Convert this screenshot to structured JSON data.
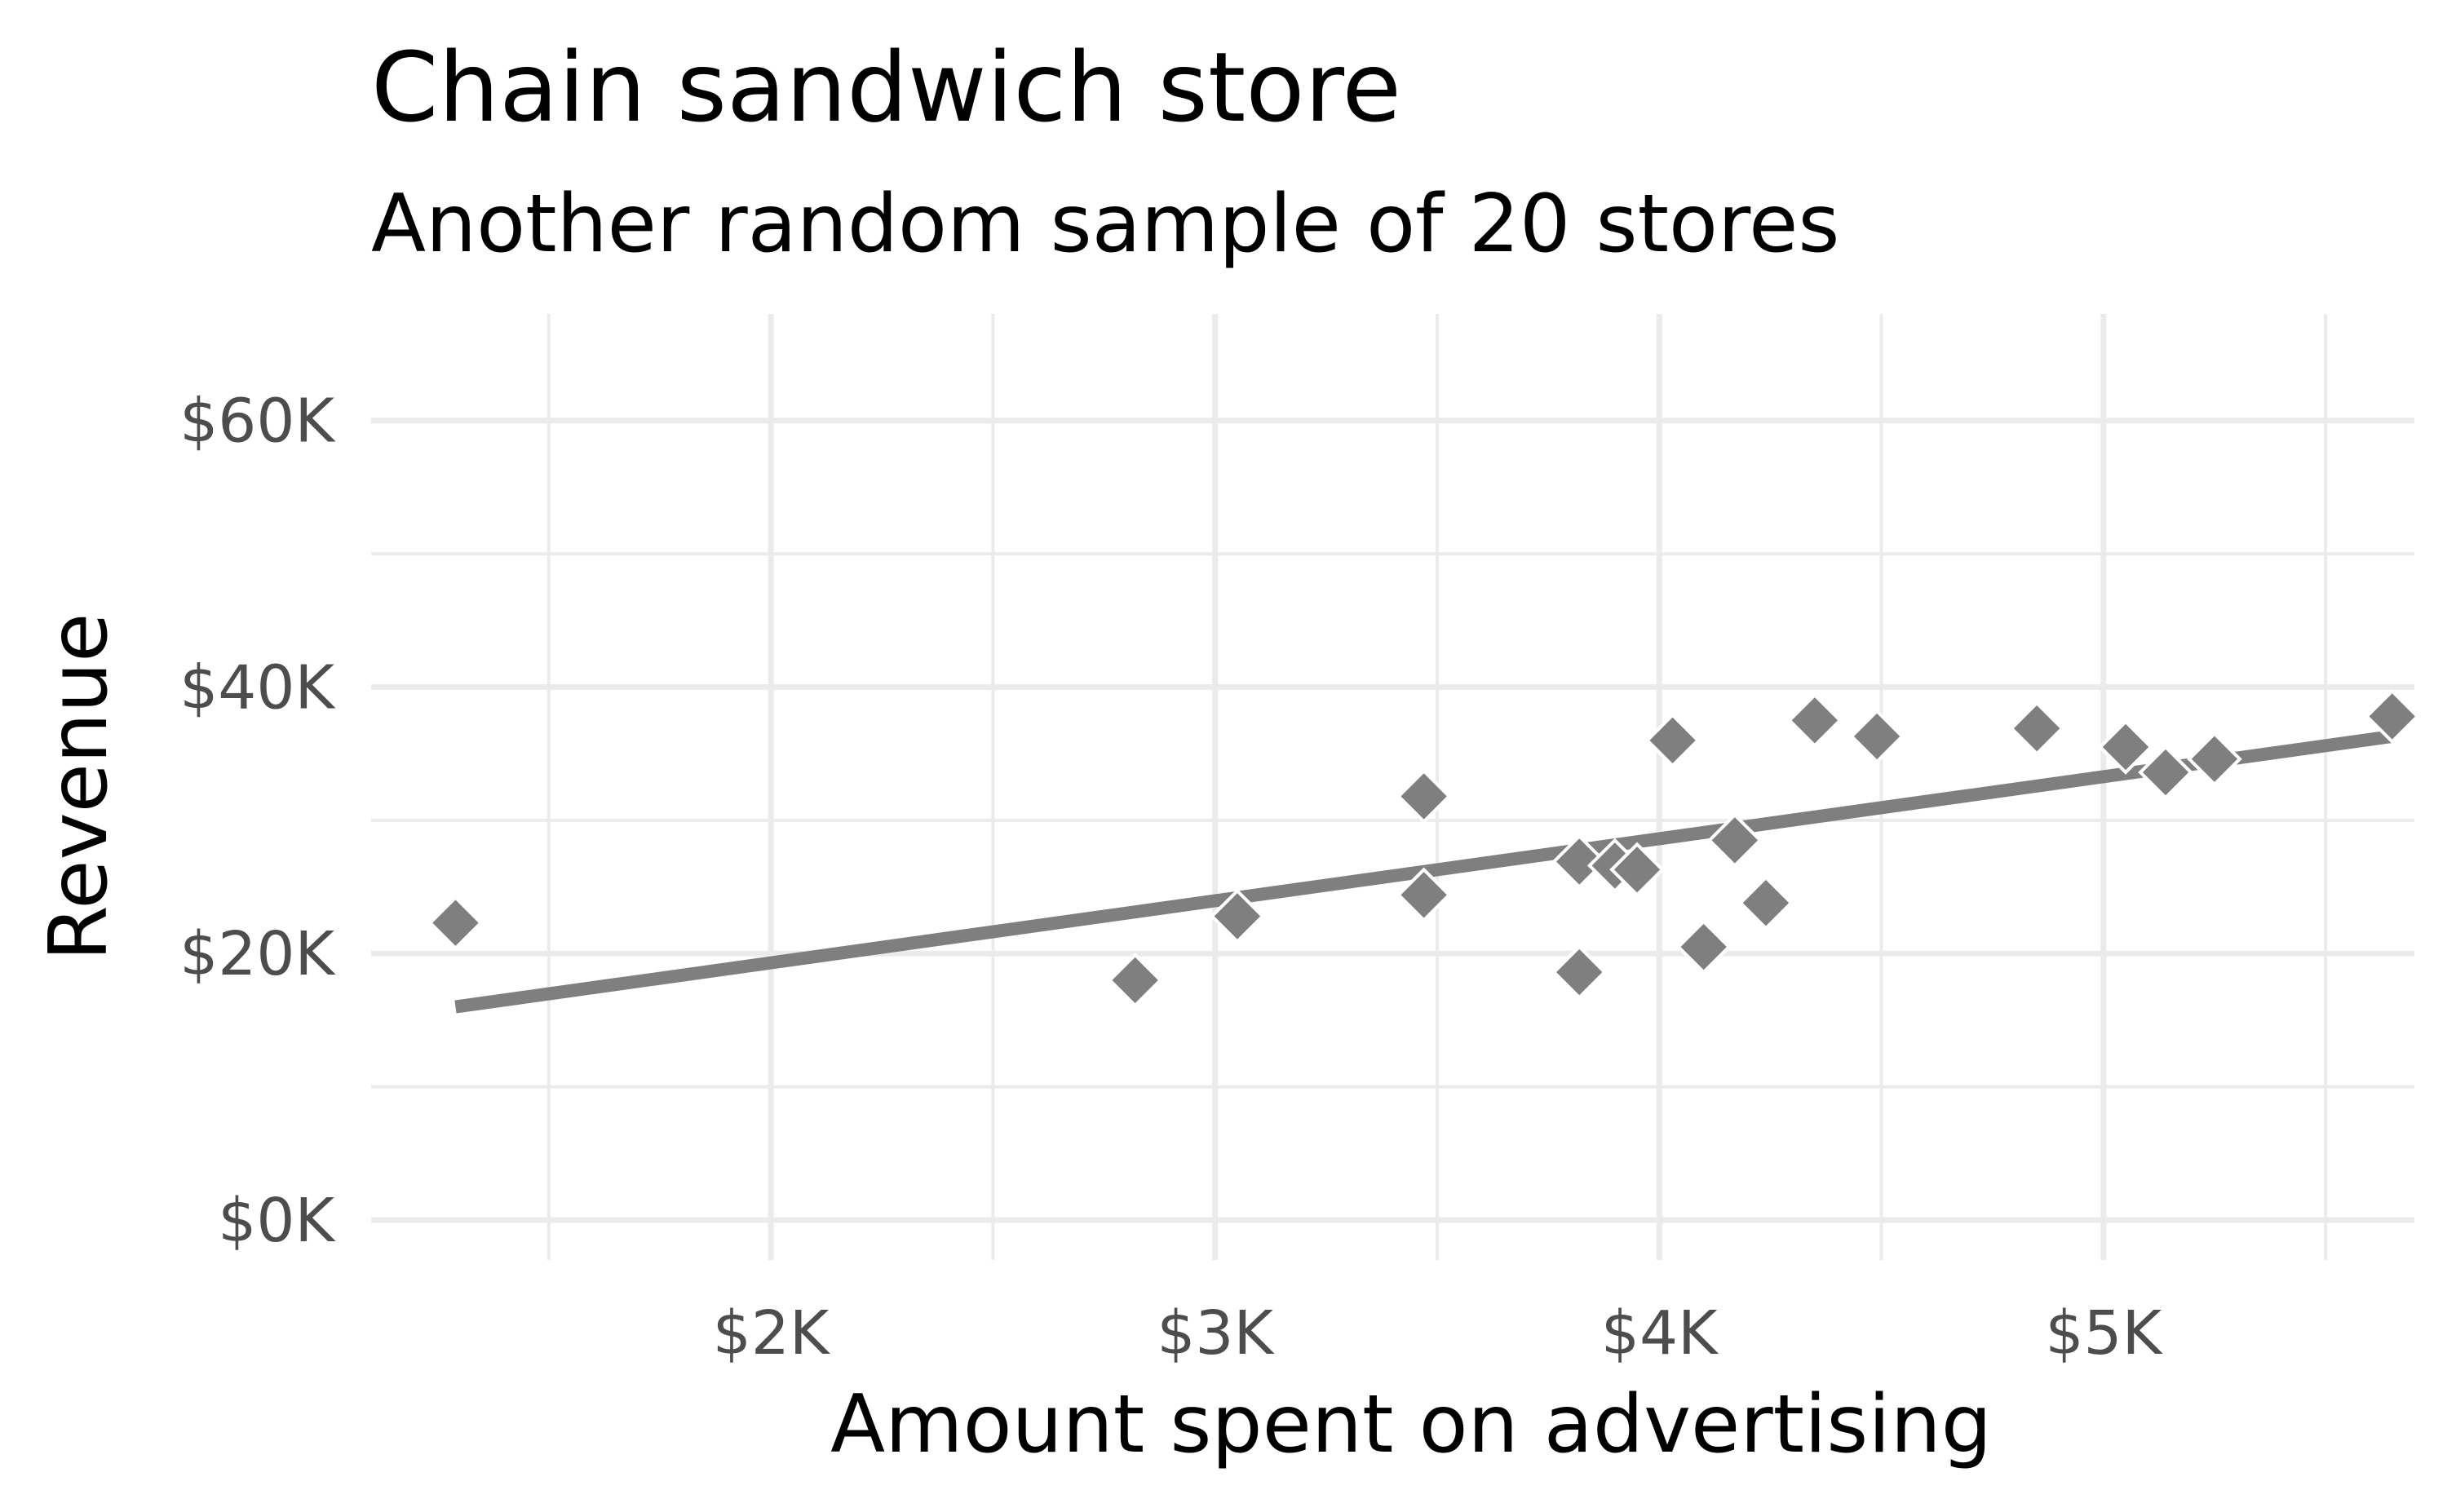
{
  "chart_data": {
    "type": "scatter",
    "title": "Chain sandwich store",
    "subtitle": "Another random sample of 20 stores",
    "xlabel": "Amount spent on advertising",
    "ylabel": "Revenue",
    "xlim": [
      1100,
      5700
    ],
    "ylim": [
      -3000,
      68000
    ],
    "x_ticks": [
      2000,
      3000,
      4000,
      5000
    ],
    "x_tick_labels": [
      "$2K",
      "$3K",
      "$4K",
      "$5K"
    ],
    "y_ticks": [
      0,
      20000,
      40000,
      60000
    ],
    "y_tick_labels": [
      "$0K",
      "$20K",
      "$40K",
      "$60K"
    ],
    "grid": true,
    "legend": "none",
    "point_shape": "diamond",
    "colors": {
      "points": "#7f7f7f",
      "line": "#7f7f7f",
      "grid": "#ebebeb"
    },
    "points": [
      {
        "x": 1290,
        "y": 22300
      },
      {
        "x": 2820,
        "y": 18000
      },
      {
        "x": 3050,
        "y": 22800
      },
      {
        "x": 3470,
        "y": 31800
      },
      {
        "x": 3470,
        "y": 24400
      },
      {
        "x": 3820,
        "y": 26900
      },
      {
        "x": 3820,
        "y": 18600
      },
      {
        "x": 3900,
        "y": 26600
      },
      {
        "x": 4030,
        "y": 36000
      },
      {
        "x": 4100,
        "y": 20500
      },
      {
        "x": 4170,
        "y": 28500
      },
      {
        "x": 4240,
        "y": 23800
      },
      {
        "x": 4350,
        "y": 37500
      },
      {
        "x": 4490,
        "y": 36300
      },
      {
        "x": 4850,
        "y": 36900
      },
      {
        "x": 5050,
        "y": 35500
      },
      {
        "x": 5140,
        "y": 33600
      },
      {
        "x": 5250,
        "y": 34600
      },
      {
        "x": 5650,
        "y": 37800
      },
      {
        "x": 3950,
        "y": 26300
      }
    ],
    "trend_line": {
      "x": [
        1290,
        5650
      ],
      "y": [
        16000,
        36300
      ]
    }
  }
}
